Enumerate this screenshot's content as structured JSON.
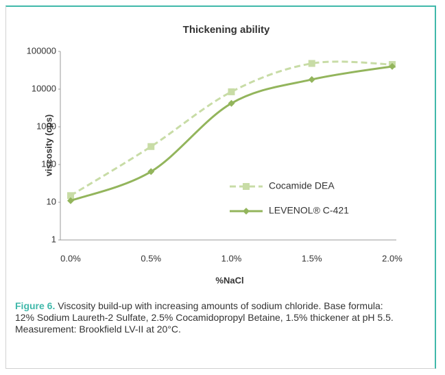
{
  "chart_data": {
    "type": "line",
    "title": "Thickening ability",
    "x_label": "%NaCl",
    "y_label": "viscosity  (cps)",
    "categories": [
      "0.0%",
      "0.5%",
      "1.0%",
      "1.5%",
      "2.0%"
    ],
    "series": [
      {
        "name": "Cocamide DEA",
        "color": "#c8dca6",
        "dashed": true,
        "marker": "square",
        "values": [
          15,
          300,
          8500,
          48000,
          45000
        ]
      },
      {
        "name": "LEVENOL® C-421",
        "color": "#93b55c",
        "dashed": false,
        "marker": "diamond",
        "values": [
          11,
          65,
          4200,
          18000,
          40000
        ]
      }
    ],
    "log_y": true,
    "ylim": [
      1,
      100000
    ],
    "yticks": [
      1,
      10,
      100,
      1000,
      10000,
      100000
    ],
    "grid": false,
    "legend": "lower right"
  },
  "caption": {
    "label": "Figure 6.",
    "text": "Viscosity build-up with increasing amounts of sodium chloride. Base formula: 12% Sodium Laureth-2 Sulfate, 2.5% Cocamidopropyl Betaine, 1.5% thickener at pH 5.5. Measurement: Brookfield LV-II at 20°C."
  }
}
